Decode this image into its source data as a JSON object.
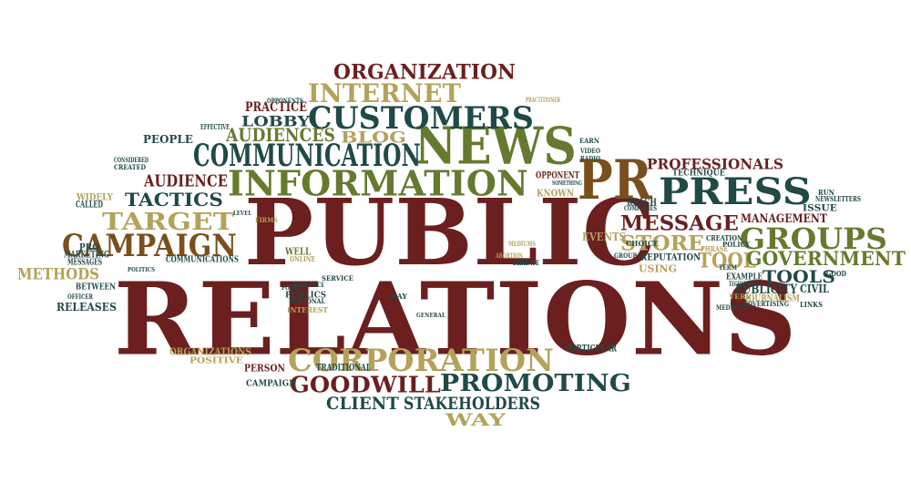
{
  "palette": {
    "maroon": "#6b1f1f",
    "teal": "#1f4a46",
    "olive": "#657a2e",
    "tan": "#b3a25a",
    "brown": "#7a4f1d"
  },
  "words": [
    {
      "text": "PUBLIC",
      "color": "maroon"
    },
    {
      "text": "RELATIONS",
      "color": "maroon"
    },
    {
      "text": "INFORMATION",
      "color": "olive"
    },
    {
      "text": "NEWS",
      "color": "olive"
    },
    {
      "text": "PRESS",
      "color": "teal"
    },
    {
      "text": "PR",
      "color": "brown"
    },
    {
      "text": "CUSTOMERS",
      "color": "teal"
    },
    {
      "text": "COMMUNICATION",
      "color": "teal"
    },
    {
      "text": "INTERNET",
      "color": "tan"
    },
    {
      "text": "ORGANIZATION",
      "color": "maroon"
    },
    {
      "text": "CAMPAIGN",
      "color": "brown"
    },
    {
      "text": "GROUPS",
      "color": "olive"
    },
    {
      "text": "CORPORATION",
      "color": "tan"
    },
    {
      "text": "PROMOTING",
      "color": "teal"
    },
    {
      "text": "GOODWILL",
      "color": "maroon"
    },
    {
      "text": "STAKEHOLDERS",
      "color": "teal"
    },
    {
      "text": "CLIENT",
      "color": "teal"
    },
    {
      "text": "WAY",
      "color": "tan"
    },
    {
      "text": "TARGET",
      "color": "tan"
    },
    {
      "text": "TACTICS",
      "color": "teal"
    },
    {
      "text": "AUDIENCE",
      "color": "maroon"
    },
    {
      "text": "AUDIENCES",
      "color": "olive"
    },
    {
      "text": "BLOG",
      "color": "tan"
    },
    {
      "text": "LOBBY",
      "color": "teal"
    },
    {
      "text": "PRACTICE",
      "color": "maroon"
    },
    {
      "text": "PEOPLE",
      "color": "teal"
    },
    {
      "text": "METHODS",
      "color": "tan"
    },
    {
      "text": "RELEASES",
      "color": "teal"
    },
    {
      "text": "MESSAGE",
      "color": "maroon"
    },
    {
      "text": "STORE",
      "color": "tan"
    },
    {
      "text": "TOOL",
      "color": "tan"
    },
    {
      "text": "TOOLS",
      "color": "teal"
    },
    {
      "text": "GOVERNMENT",
      "color": "olive"
    },
    {
      "text": "MANAGEMENT",
      "color": "maroon"
    },
    {
      "text": "PROFESSIONALS",
      "color": "maroon"
    },
    {
      "text": "PUBLICITY",
      "color": "teal"
    },
    {
      "text": "CIVIL",
      "color": "teal"
    },
    {
      "text": "JOURNALISM",
      "color": "tan"
    },
    {
      "text": "EVENTS",
      "color": "tan"
    },
    {
      "text": "REPUTATION",
      "color": "teal"
    },
    {
      "text": "USING",
      "color": "tan"
    },
    {
      "text": "KNOWN",
      "color": "tan"
    },
    {
      "text": "OPPONENT",
      "color": "maroon"
    },
    {
      "text": "TECHNIQUE",
      "color": "teal"
    },
    {
      "text": "REACH",
      "color": "teal"
    },
    {
      "text": "ORGANIZATIONS",
      "color": "tan"
    },
    {
      "text": "POSITIVE",
      "color": "tan"
    },
    {
      "text": "PERSON",
      "color": "maroon"
    },
    {
      "text": "TRADITIONAL",
      "color": "teal"
    },
    {
      "text": "CAMPAIGN",
      "color": "teal"
    },
    {
      "text": "PARTICULAR",
      "color": "teal"
    },
    {
      "text": "WELL",
      "color": "olive"
    },
    {
      "text": "ONLINE",
      "color": "tan"
    },
    {
      "text": "PUBLICS",
      "color": "teal"
    },
    {
      "text": "INTEREST",
      "color": "tan"
    },
    {
      "text": "COMMUNICATIONS",
      "color": "teal"
    },
    {
      "text": "MESSAGES",
      "color": "teal"
    },
    {
      "text": "BETWEEN",
      "color": "teal"
    },
    {
      "text": "MARKETING",
      "color": "teal"
    },
    {
      "text": "CALLED",
      "color": "teal"
    },
    {
      "text": "WIDELY",
      "color": "tan"
    },
    {
      "text": "PRO",
      "color": "teal"
    },
    {
      "text": "EFFECTIVE",
      "color": "teal"
    },
    {
      "text": "CONSIDERED",
      "color": "teal"
    },
    {
      "text": "CREATED",
      "color": "teal"
    },
    {
      "text": "OPPONENTS",
      "color": "teal"
    },
    {
      "text": "EXAMPLE",
      "color": "teal"
    },
    {
      "text": "ADVERTISING",
      "color": "teal"
    },
    {
      "text": "TECHNIQUES",
      "color": "teal"
    },
    {
      "text": "CHOICE",
      "color": "teal"
    },
    {
      "text": "CREATION",
      "color": "teal"
    },
    {
      "text": "POLICY",
      "color": "teal"
    },
    {
      "text": "PHRASE",
      "color": "tan"
    },
    {
      "text": "ISSUE",
      "color": "teal"
    },
    {
      "text": "NEWSLETTERS",
      "color": "teal"
    },
    {
      "text": "RUN",
      "color": "teal"
    },
    {
      "text": "GOOD",
      "color": "teal"
    },
    {
      "text": "LINKS",
      "color": "teal"
    },
    {
      "text": "MEDIATED",
      "color": "teal"
    },
    {
      "text": "VERY",
      "color": "tan"
    },
    {
      "text": "TERM",
      "color": "teal"
    },
    {
      "text": "LIFE",
      "color": "teal"
    },
    {
      "text": "DAY",
      "color": "teal"
    },
    {
      "text": "GENERAL",
      "color": "teal"
    },
    {
      "text": "EARN",
      "color": "teal"
    },
    {
      "text": "VIDEO",
      "color": "teal"
    },
    {
      "text": "RADIO",
      "color": "teal"
    },
    {
      "text": "SOMETHING",
      "color": "teal"
    },
    {
      "text": "PRACTITIONER",
      "color": "tan"
    },
    {
      "text": "COMPANIES",
      "color": "teal"
    },
    {
      "text": "LEVEL",
      "color": "teal"
    },
    {
      "text": "FIRMS",
      "color": "tan"
    },
    {
      "text": "MEDIUMS",
      "color": "tan"
    },
    {
      "text": "ABORTION",
      "color": "tan"
    },
    {
      "text": "CREATE",
      "color": "teal"
    },
    {
      "text": "SERVICE",
      "color": "teal"
    },
    {
      "text": "INFLUENCE",
      "color": "teal"
    },
    {
      "text": "FORM",
      "color": "teal"
    },
    {
      "text": "PERSONAL",
      "color": "teal"
    },
    {
      "text": "POLITICS",
      "color": "teal"
    },
    {
      "text": "GROUP",
      "color": "teal"
    },
    {
      "text": "OFFICER",
      "color": "teal"
    }
  ]
}
